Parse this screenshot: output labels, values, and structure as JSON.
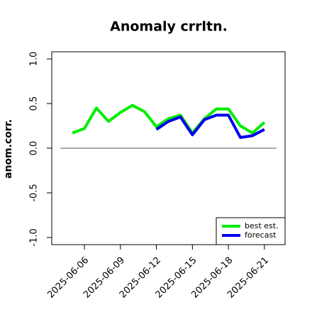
{
  "chart_data": {
    "type": "line",
    "title": "Anomaly crrltn.",
    "ylabel": "anom.corr.",
    "x": [
      "2025-06-05",
      "2025-06-06",
      "2025-06-07",
      "2025-06-08",
      "2025-06-09",
      "2025-06-10",
      "2025-06-11",
      "2025-06-12",
      "2025-06-13",
      "2025-06-14",
      "2025-06-15",
      "2025-06-16",
      "2025-06-17",
      "2025-06-18",
      "2025-06-19",
      "2025-06-20",
      "2025-06-21"
    ],
    "series": [
      {
        "name": "best est.",
        "color": "#00ee00",
        "values": [
          0.17,
          0.22,
          0.45,
          0.3,
          0.4,
          0.48,
          0.41,
          0.24,
          0.33,
          0.37,
          0.17,
          0.33,
          0.44,
          0.44,
          0.25,
          0.17,
          0.29
        ]
      },
      {
        "name": "forecast",
        "color": "#0000ee",
        "values": [
          null,
          null,
          null,
          null,
          null,
          null,
          null,
          0.21,
          0.3,
          0.35,
          0.15,
          0.32,
          0.37,
          0.37,
          0.12,
          0.14,
          0.21
        ]
      }
    ],
    "xlim": [
      "2025-06-04",
      "2025-06-22"
    ],
    "xticks": [
      "2025-06-06",
      "2025-06-09",
      "2025-06-12",
      "2025-06-15",
      "2025-06-18",
      "2025-06-21"
    ],
    "xtick_label_colors": [
      "#000000",
      "#000000",
      "#228b22",
      "#000000",
      "#000000",
      "#000000"
    ],
    "ylim": [
      -1,
      1
    ],
    "yticks": [
      {
        "value": -1,
        "label": "-1.0"
      },
      -0.5,
      {
        "value": 0,
        "label": "0.0"
      },
      0.5,
      {
        "value": 1,
        "label": "1.0"
      }
    ],
    "reference_line": 0,
    "legend": "bottomright"
  }
}
